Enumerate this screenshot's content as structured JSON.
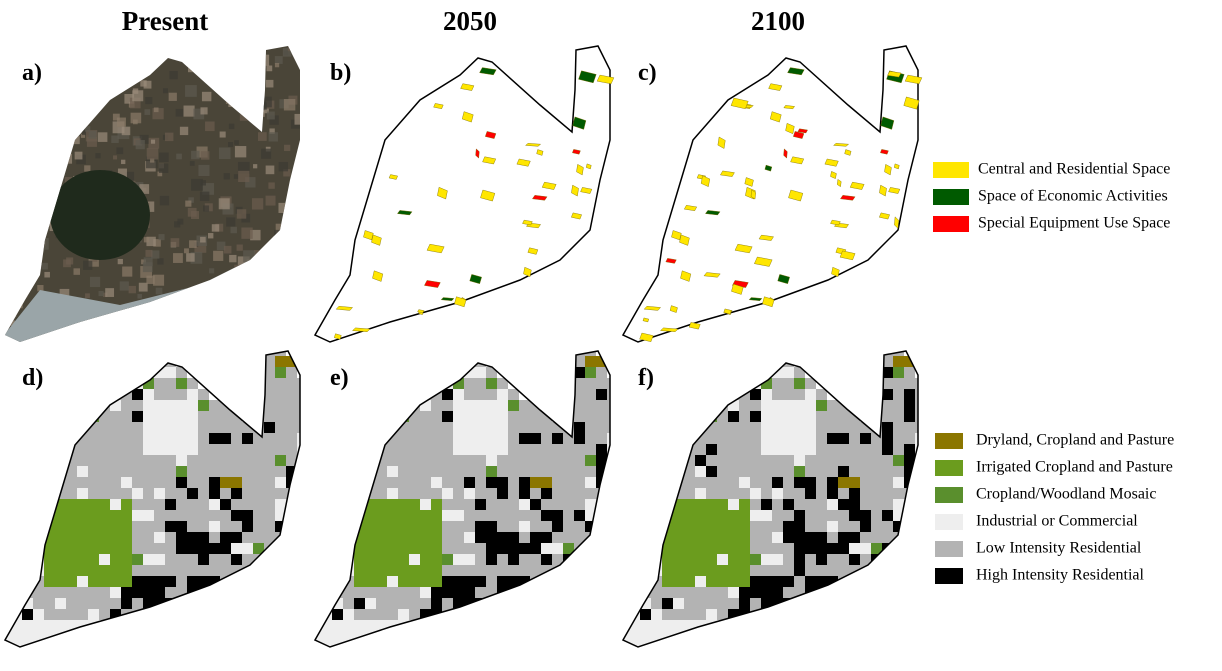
{
  "headers": [
    "Present",
    "2050",
    "2100"
  ],
  "panels": [
    "a)",
    "b)",
    "c)",
    "d)",
    "e)",
    "f)"
  ],
  "legend_top": [
    {
      "label": "Central and Residential Space",
      "color": "#ffe600"
    },
    {
      "label": "Space of Economic Activities",
      "color": "#005a00"
    },
    {
      "label": "Special Equipment Use Space",
      "color": "#ff0000"
    }
  ],
  "legend_bottom": [
    {
      "label": "Dryland, Cropland and Pasture",
      "color": "#8b7600"
    },
    {
      "label": "Irrigated Cropland and Pasture",
      "color": "#6b9c1e"
    },
    {
      "label": "Cropland/Woodland Mosaic",
      "color": "#5a8f2d"
    },
    {
      "label": "Industrial or Commercial",
      "color": "#eeeeee"
    },
    {
      "label": "Low Intensity Residential",
      "color": "#b3b3b3"
    },
    {
      "label": "High Intensity Residential",
      "color": "#000000"
    }
  ]
}
